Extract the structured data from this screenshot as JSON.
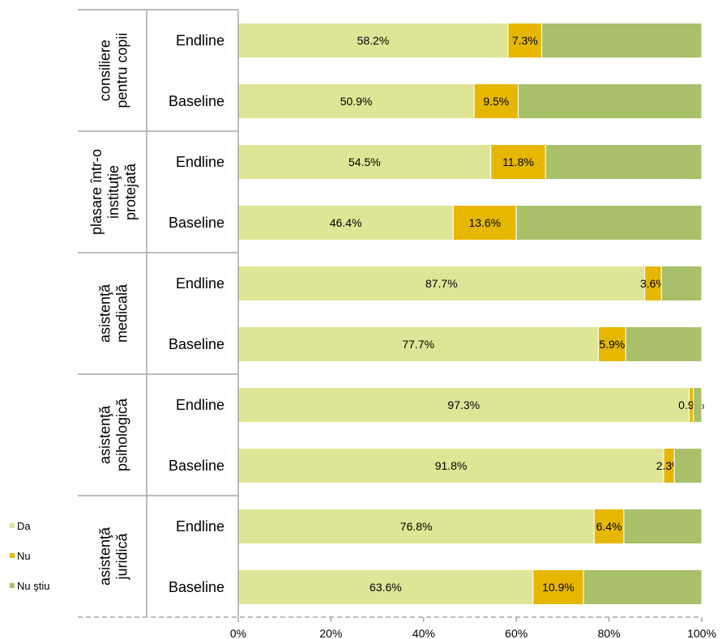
{
  "chart_data": {
    "type": "bar",
    "orientation": "horizontal",
    "stacked": true,
    "percent_scale": true,
    "groups": [
      {
        "label": "consiliere pentru copii",
        "label_lines": [
          "consiliere",
          "pentru copii"
        ]
      },
      {
        "label": "plasare într-o instituţie protejată",
        "label_lines": [
          "plasare într-o",
          "instituţie",
          "protejată"
        ]
      },
      {
        "label": "asistenţă medicală",
        "label_lines": [
          "asistenţă",
          "medicală"
        ]
      },
      {
        "label": "asistenţă psihologică",
        "label_lines": [
          "asistenţă",
          "psihologică"
        ]
      },
      {
        "label": "asistenţă juridică",
        "label_lines": [
          "asistenţă",
          "juridică"
        ]
      }
    ],
    "rows": [
      {
        "group": "consiliere pentru copii",
        "label": "Endline",
        "values": [
          58.2,
          7.3,
          34.5
        ],
        "labels": [
          "58.2%",
          "7.3%",
          ""
        ]
      },
      {
        "group": "consiliere pentru copii",
        "label": "Baseline",
        "values": [
          50.9,
          9.5,
          39.6
        ],
        "labels": [
          "50.9%",
          "9.5%",
          ""
        ]
      },
      {
        "group": "plasare într-o instituţie protejată",
        "label": "Endline",
        "values": [
          54.5,
          11.8,
          33.7
        ],
        "labels": [
          "54.5%",
          "11.8%",
          ""
        ]
      },
      {
        "group": "plasare într-o instituţie protejată",
        "label": "Baseline",
        "values": [
          46.4,
          13.6,
          40.0
        ],
        "labels": [
          "46.4%",
          "13.6%",
          ""
        ]
      },
      {
        "group": "asistenţă medicală",
        "label": "Endline",
        "values": [
          87.7,
          3.6,
          8.7
        ],
        "labels": [
          "87.7%",
          "3.6%",
          ""
        ]
      },
      {
        "group": "asistenţă medicală",
        "label": "Baseline",
        "values": [
          77.7,
          5.9,
          16.4
        ],
        "labels": [
          "77.7%",
          "5.9%",
          ""
        ]
      },
      {
        "group": "asistenţă psihologică",
        "label": "Endline",
        "values": [
          97.3,
          0.9,
          1.8
        ],
        "labels": [
          "97.3%",
          "0.9%",
          ""
        ]
      },
      {
        "group": "asistenţă psihologică",
        "label": "Baseline",
        "values": [
          91.8,
          2.3,
          5.9
        ],
        "labels": [
          "91.8%",
          "2.3%",
          ""
        ]
      },
      {
        "group": "asistenţă juridică",
        "label": "Endline",
        "values": [
          76.8,
          6.4,
          16.8
        ],
        "labels": [
          "76.8%",
          "6.4%",
          ""
        ]
      },
      {
        "group": "asistenţă juridică",
        "label": "Baseline",
        "values": [
          63.6,
          10.9,
          25.5
        ],
        "labels": [
          "63.6%",
          "10.9%",
          ""
        ]
      }
    ],
    "series": [
      {
        "name": "Da",
        "color": "#dfe596"
      },
      {
        "name": "Nu",
        "color": "#e6b700"
      },
      {
        "name": "Nu ştiu",
        "color": "#a8c06a"
      }
    ],
    "xlim": [
      0,
      100
    ],
    "xticks": [
      "0%",
      "20%",
      "40%",
      "60%",
      "80%",
      "100%"
    ],
    "grid": false,
    "legend_position": "left"
  }
}
